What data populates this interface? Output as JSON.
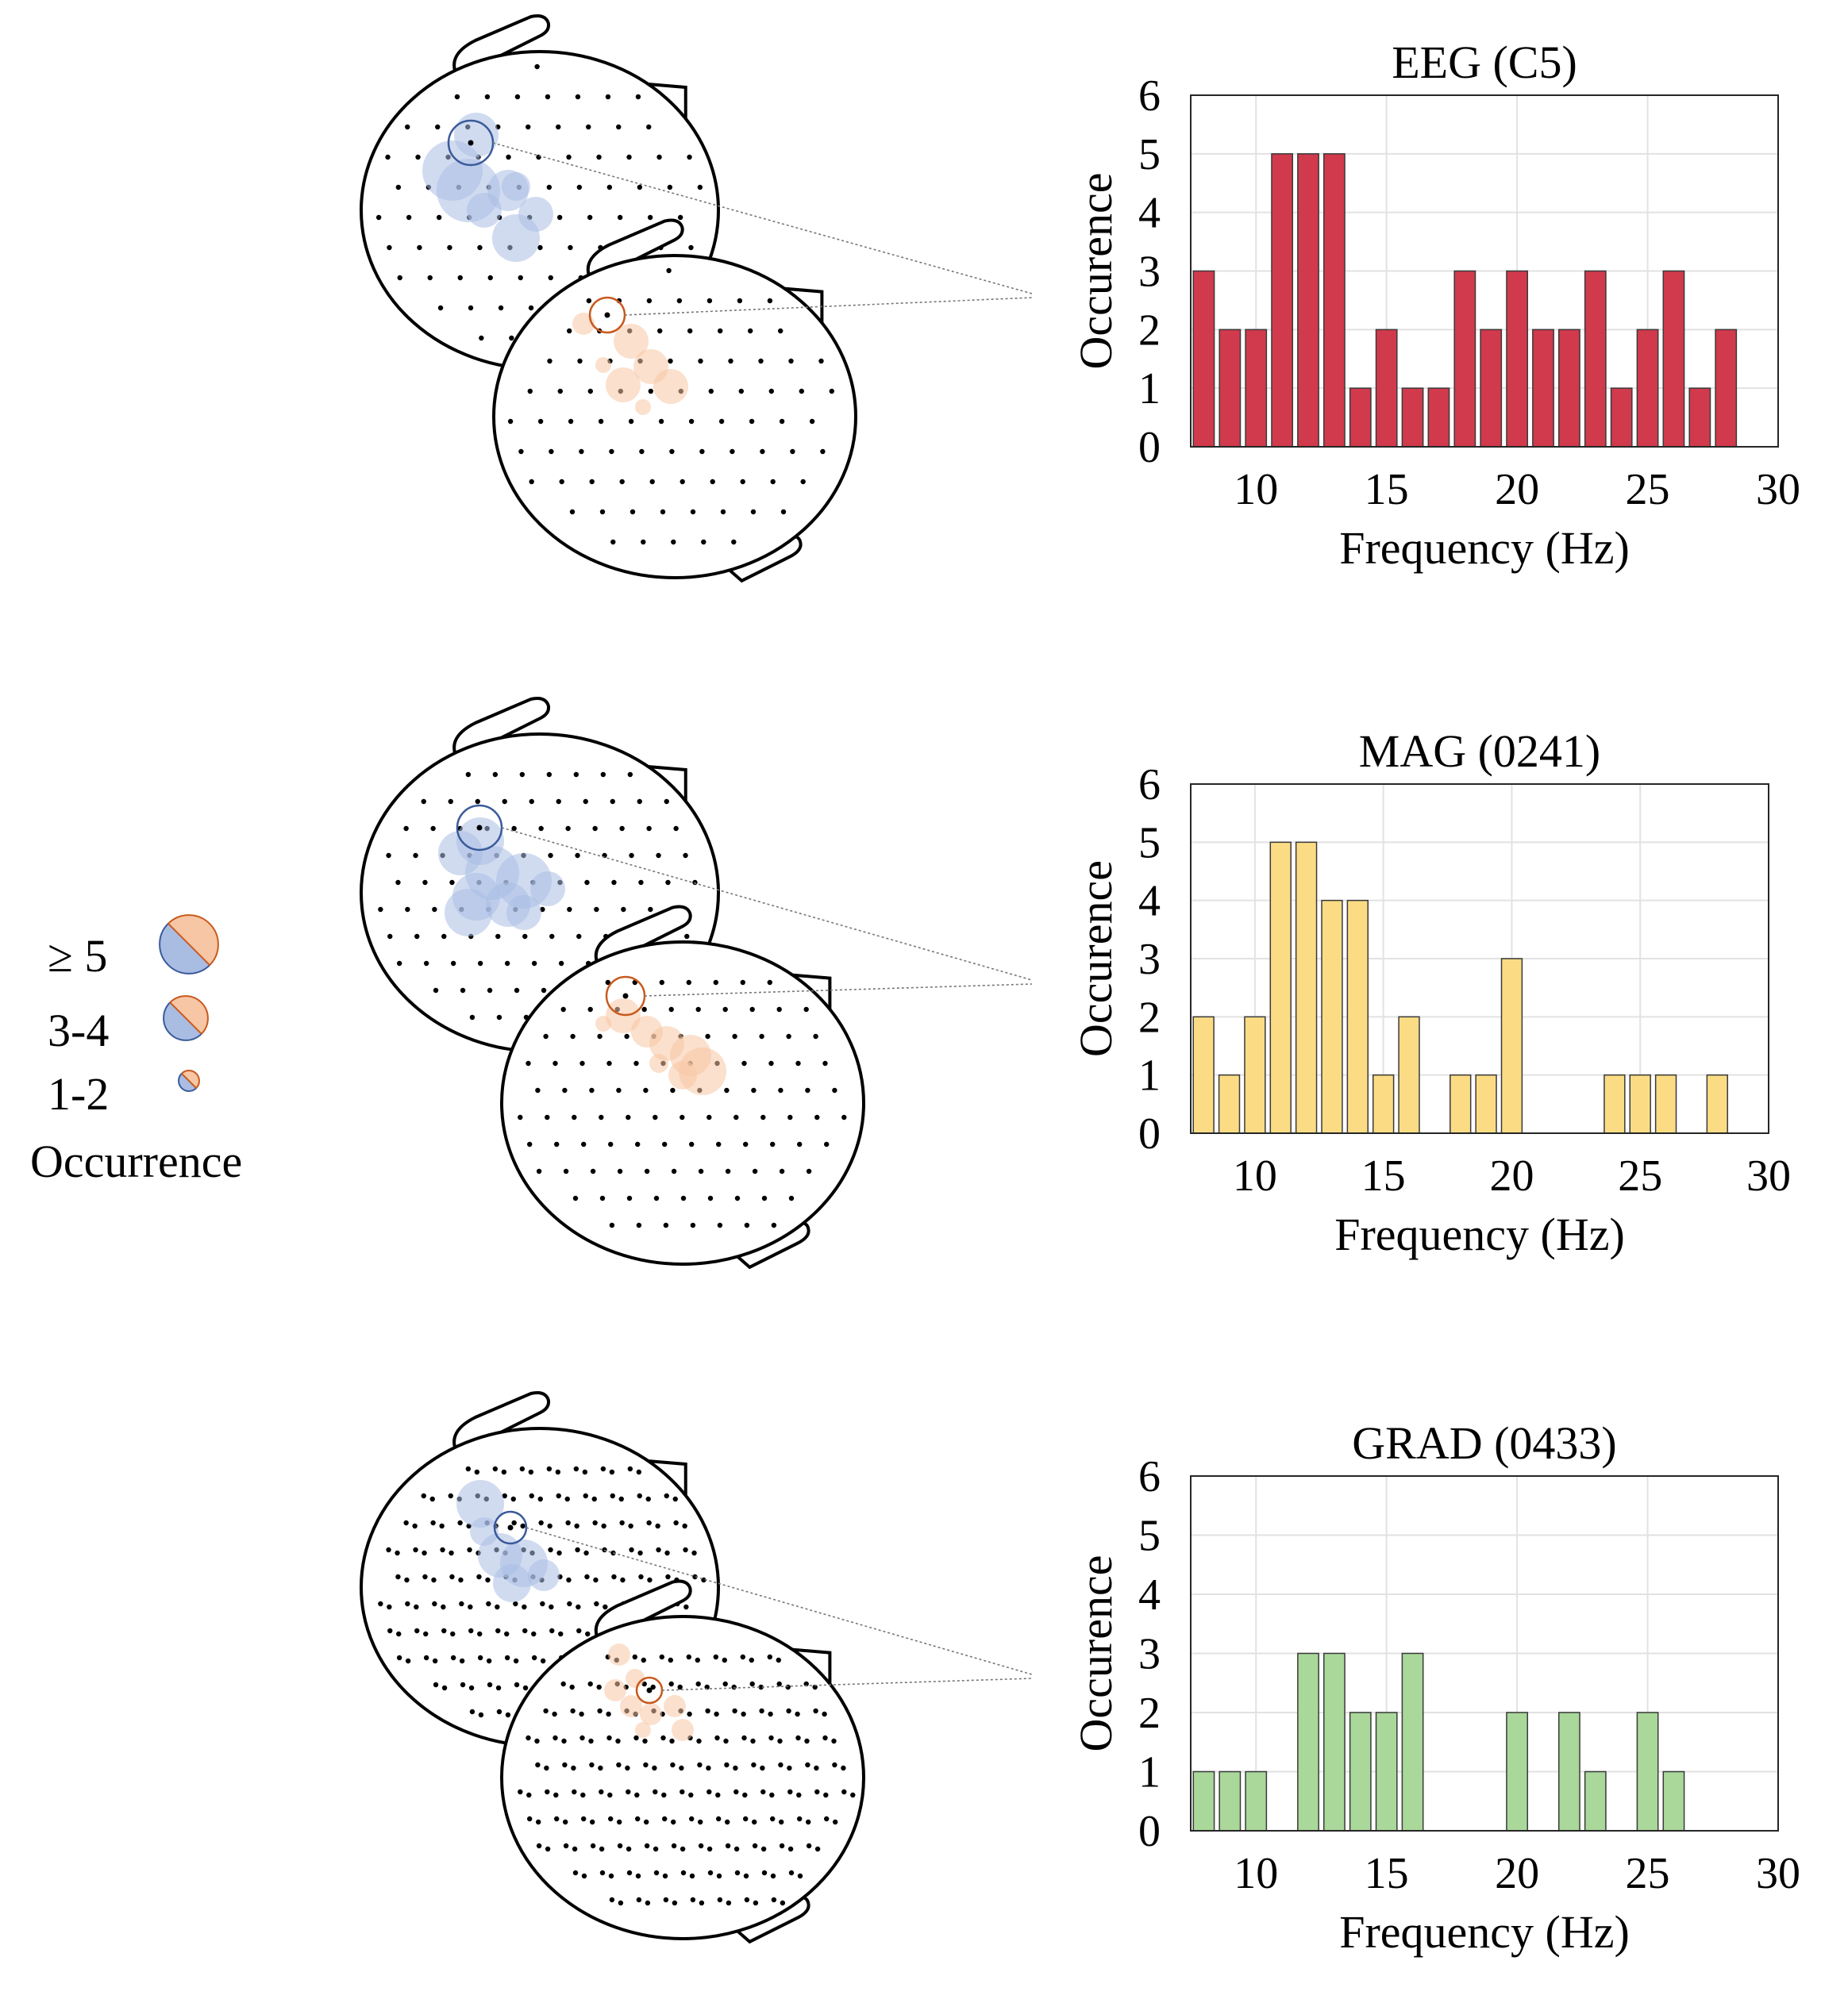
{
  "legend": {
    "title": "Occurrence",
    "items": [
      {
        "label": "≥ 5"
      },
      {
        "label": "3-4"
      },
      {
        "label": "1-2"
      }
    ],
    "colors": {
      "blue": "#a9bde3",
      "orange": "#f7c6a4",
      "blue_edge": "#3a5a9a",
      "orange_edge": "#c85a1e"
    }
  },
  "chart_data": [
    {
      "type": "bar",
      "title": "EEG (C5)",
      "xlabel": "Frequency (Hz)",
      "ylabel": "Occurence",
      "xlim": [
        7.5,
        30
      ],
      "ylim": [
        0,
        6
      ],
      "xticks": [
        10,
        15,
        20,
        25,
        30
      ],
      "yticks": [
        0,
        1,
        2,
        3,
        4,
        5,
        6
      ],
      "color": "#d13a4c",
      "x": [
        8,
        9,
        10,
        11,
        12,
        13,
        14,
        15,
        16,
        17,
        18,
        19,
        20,
        21,
        22,
        23,
        24,
        25,
        26,
        27,
        28
      ],
      "values": [
        3,
        2,
        2,
        5,
        5,
        5,
        1,
        2,
        1,
        1,
        3,
        2,
        3,
        2,
        2,
        3,
        1,
        2,
        3,
        1,
        2
      ]
    },
    {
      "type": "bar",
      "title": "MAG (0241)",
      "xlabel": "Frequency (Hz)",
      "ylabel": "Occurence",
      "xlim": [
        7.5,
        30
      ],
      "ylim": [
        0,
        6
      ],
      "xticks": [
        10,
        15,
        20,
        25,
        30
      ],
      "yticks": [
        0,
        1,
        2,
        3,
        4,
        5,
        6
      ],
      "color": "#fbdc85",
      "x": [
        8,
        9,
        10,
        11,
        12,
        13,
        14,
        15,
        16,
        18,
        19,
        20,
        24,
        25,
        26,
        28
      ],
      "values": [
        2,
        1,
        2,
        5,
        5,
        4,
        4,
        1,
        2,
        1,
        1,
        3,
        1,
        1,
        1,
        1
      ]
    },
    {
      "type": "bar",
      "title": "GRAD (0433)",
      "xlabel": "Frequency (Hz)",
      "ylabel": "Occurence",
      "xlim": [
        7.5,
        30
      ],
      "ylim": [
        0,
        6
      ],
      "xticks": [
        10,
        15,
        20,
        25,
        30
      ],
      "yticks": [
        0,
        1,
        2,
        3,
        4,
        5,
        6
      ],
      "color": "#a9d89a",
      "x": [
        8,
        9,
        10,
        12,
        13,
        14,
        15,
        16,
        20,
        22,
        23,
        25,
        26
      ],
      "values": [
        1,
        1,
        1,
        3,
        3,
        2,
        2,
        3,
        2,
        2,
        1,
        2,
        1
      ]
    }
  ]
}
